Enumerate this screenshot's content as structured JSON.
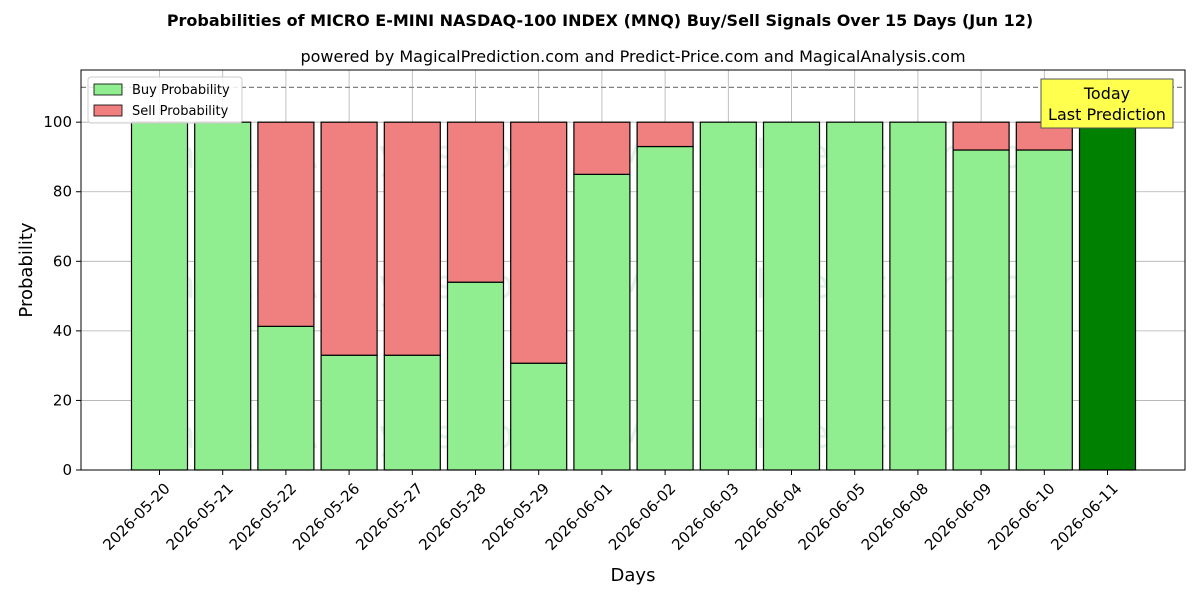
{
  "chart_data": {
    "type": "bar",
    "stacked": true,
    "title": "Probabilities of MICRO E-MINI NASDAQ-100 INDEX (MNQ) Buy/Sell Signals Over 15 Days (Jun 12)",
    "subtitle": "powered by MagicalPrediction.com and Predict-Price.com and MagicalAnalysis.com",
    "xlabel": "Days",
    "ylabel": "Probability",
    "ylim": [
      0,
      115
    ],
    "yticks": [
      0,
      20,
      40,
      60,
      80,
      100
    ],
    "grid": true,
    "reference_line": 110,
    "legend_position": "top-left",
    "categories": [
      "2026-05-20",
      "2026-05-21",
      "2026-05-22",
      "2026-05-26",
      "2026-05-27",
      "2026-05-28",
      "2026-05-29",
      "2026-06-01",
      "2026-06-02",
      "2026-06-03",
      "2026-06-04",
      "2026-06-05",
      "2026-06-08",
      "2026-06-09",
      "2026-06-10",
      "2026-06-11"
    ],
    "series": [
      {
        "name": "Buy Probability",
        "color": "#90ee90",
        "values": [
          100,
          100,
          41.3,
          33,
          33,
          54,
          30.7,
          85,
          93,
          100,
          100,
          100,
          100,
          92,
          92,
          100
        ]
      },
      {
        "name": "Sell Probability",
        "color": "#f08080",
        "values": [
          0,
          0,
          58.7,
          67,
          67,
          46,
          69.3,
          15,
          7,
          0,
          0,
          0,
          0,
          8,
          8,
          0
        ]
      }
    ],
    "highlight": {
      "index": 15,
      "color": "#008000"
    },
    "annotation": {
      "line1": "Today",
      "line2": "Last Prediction",
      "background": "#ffff4d"
    },
    "watermarks": [
      "MagicalAnalysis.com",
      "MagicalPrediction.com"
    ]
  }
}
